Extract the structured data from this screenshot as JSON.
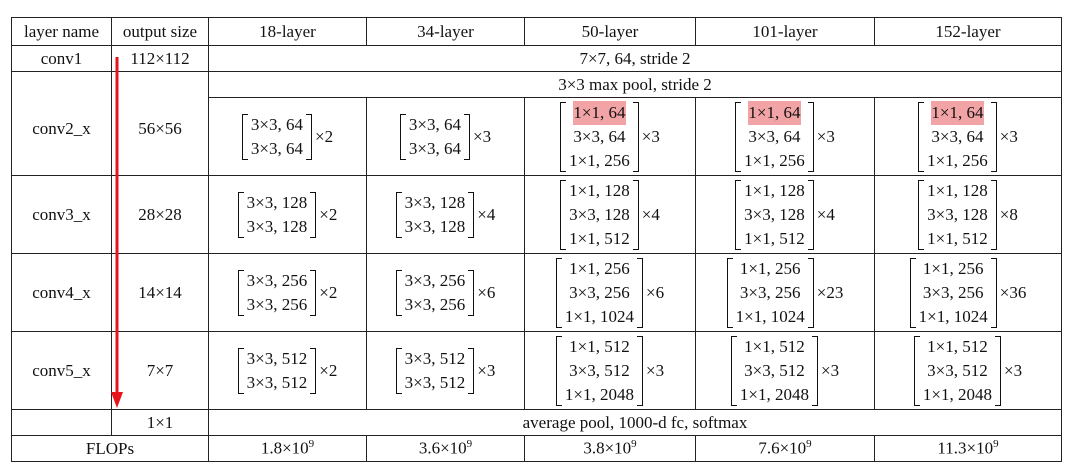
{
  "header": [
    "layer name",
    "output size",
    "18-layer",
    "34-layer",
    "50-layer",
    "101-layer",
    "152-layer"
  ],
  "conv1": {
    "name": "conv1",
    "size": "112×112",
    "spec": "7×7, 64, stride 2"
  },
  "maxpool": {
    "spec": "3×3 max pool, stride 2"
  },
  "stages": [
    {
      "name": "conv2_x",
      "size": "56×56",
      "blocks": [
        {
          "lines": [
            "3×3, 64",
            "3×3, 64"
          ],
          "mult": "×2"
        },
        {
          "lines": [
            "3×3, 64",
            "3×3, 64"
          ],
          "mult": "×3"
        },
        {
          "lines": [
            "1×1, 64",
            "3×3, 64",
            "1×1, 256"
          ],
          "mult": "×3"
        },
        {
          "lines": [
            "1×1, 64",
            "3×3, 64",
            "1×1, 256"
          ],
          "mult": "×3"
        },
        {
          "lines": [
            "1×1, 64",
            "3×3, 64",
            "1×1, 256"
          ],
          "mult": "×3"
        }
      ]
    },
    {
      "name": "conv3_x",
      "size": "28×28",
      "blocks": [
        {
          "lines": [
            "3×3, 128",
            "3×3, 128"
          ],
          "mult": "×2"
        },
        {
          "lines": [
            "3×3, 128",
            "3×3, 128"
          ],
          "mult": "×4"
        },
        {
          "lines": [
            "1×1, 128",
            "3×3, 128",
            "1×1, 512"
          ],
          "mult": "×4"
        },
        {
          "lines": [
            "1×1, 128",
            "3×3, 128",
            "1×1, 512"
          ],
          "mult": "×4"
        },
        {
          "lines": [
            "1×1, 128",
            "3×3, 128",
            "1×1, 512"
          ],
          "mult": "×8"
        }
      ]
    },
    {
      "name": "conv4_x",
      "size": "14×14",
      "blocks": [
        {
          "lines": [
            "3×3, 256",
            "3×3, 256"
          ],
          "mult": "×2"
        },
        {
          "lines": [
            "3×3, 256",
            "3×3, 256"
          ],
          "mult": "×6"
        },
        {
          "lines": [
            "1×1, 256",
            "3×3, 256",
            "1×1, 1024"
          ],
          "mult": "×6"
        },
        {
          "lines": [
            "1×1, 256",
            "3×3, 256",
            "1×1, 1024"
          ],
          "mult": "×23"
        },
        {
          "lines": [
            "1×1, 256",
            "3×3, 256",
            "1×1, 1024"
          ],
          "mult": "×36"
        }
      ]
    },
    {
      "name": "conv5_x",
      "size": "7×7",
      "blocks": [
        {
          "lines": [
            "3×3, 512",
            "3×3, 512"
          ],
          "mult": "×2"
        },
        {
          "lines": [
            "3×3, 512",
            "3×3, 512"
          ],
          "mult": "×3"
        },
        {
          "lines": [
            "1×1, 512",
            "3×3, 512",
            "1×1, 2048"
          ],
          "mult": "×3"
        },
        {
          "lines": [
            "1×1, 512",
            "3×3, 512",
            "1×1, 2048"
          ],
          "mult": "×3"
        },
        {
          "lines": [
            "1×1, 512",
            "3×3, 512",
            "1×1, 2048"
          ],
          "mult": "×3"
        }
      ]
    }
  ],
  "pool": {
    "size": "1×1",
    "spec": "average pool, 1000-d fc, softmax"
  },
  "flops": {
    "label": "FLOPs",
    "values": [
      {
        "base": "1.8×10",
        "exp": "9"
      },
      {
        "base": "3.6×10",
        "exp": "9"
      },
      {
        "base": "3.8×10",
        "exp": "9"
      },
      {
        "base": "7.6×10",
        "exp": "9"
      },
      {
        "base": "11.3×10",
        "exp": "9"
      }
    ]
  },
  "highlight_color": "#f2a3a6",
  "arrow_color": "#e8141b"
}
